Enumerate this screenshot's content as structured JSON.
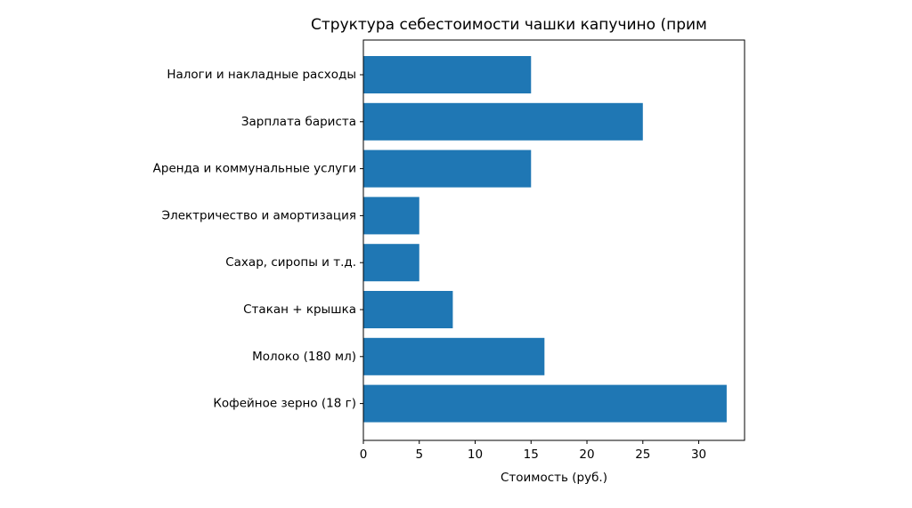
{
  "chart_data": {
    "type": "bar",
    "orientation": "horizontal",
    "title": "Структура себестоимости чашки капучино (прим",
    "xlabel": "Стоимость (руб.)",
    "ylabel": "",
    "categories": [
      "Налоги и накладные расходы",
      "Зарплата бариста",
      "Аренда и коммунальные услуги",
      "Электричество и амортизация",
      "Сахар, сиропы и т.д.",
      "Стакан + крышка",
      "Молоко (180 мл)",
      "Кофейное зерно (18 г)"
    ],
    "values": [
      15,
      25,
      15,
      5,
      5,
      8,
      16.2,
      32.5
    ],
    "xlim": [
      0,
      34.1
    ],
    "xticks": [
      "0",
      "5",
      "10",
      "15",
      "20",
      "25",
      "30"
    ],
    "grid": false,
    "legend": false,
    "bar_color": "#1f77b4"
  }
}
